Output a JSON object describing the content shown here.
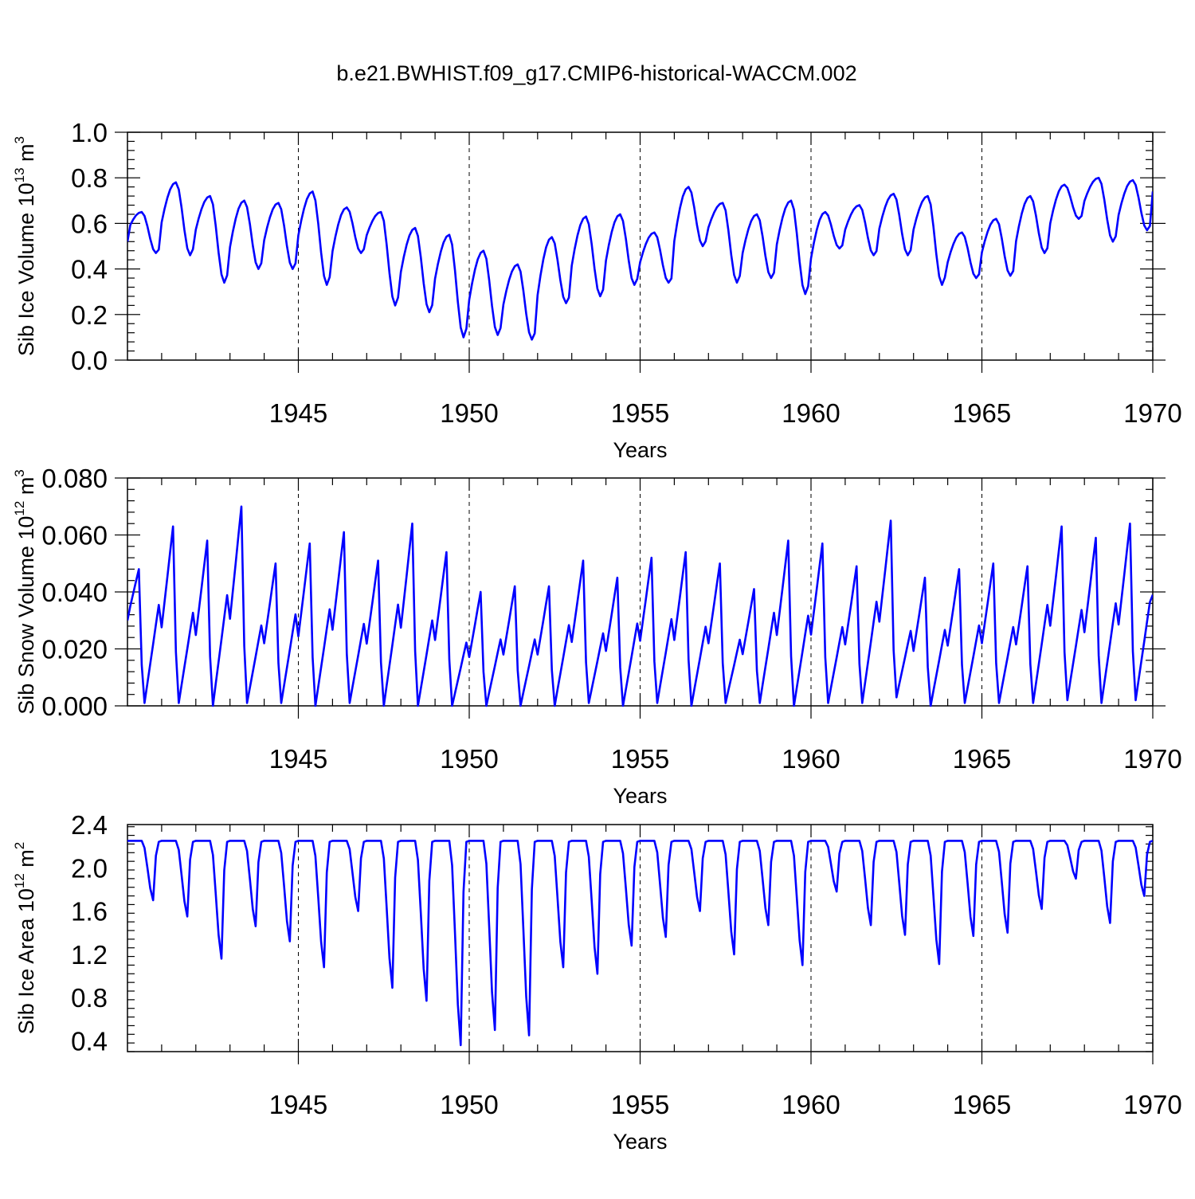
{
  "title": "b.e21.BWHIST.f09_g17.CMIP6-historical-WACCM.002",
  "chart_data": [
    {
      "type": "line",
      "name": "ice-volume",
      "ylabel_main": "Sib Ice Volume 10",
      "ylabel_sup": "13",
      "ylabel_unit": " m",
      "ylabel_unit_sup": "3",
      "xlabel": "Years",
      "xlim": [
        1940,
        1970
      ],
      "ylim": [
        0.0,
        1.0
      ],
      "y_ticks": [
        "0.0",
        "0.2",
        "0.4",
        "0.6",
        "0.8",
        "1.0"
      ],
      "y_tick_values": [
        0.0,
        0.2,
        0.4,
        0.6,
        0.8,
        1.0
      ],
      "x_ticks": [
        "1945",
        "1950",
        "1955",
        "1960",
        "1965",
        "1970"
      ],
      "x_tick_values": [
        1945,
        1950,
        1955,
        1960,
        1965,
        1970
      ],
      "color": "#0000ff",
      "seasonal": {
        "min_month": 10,
        "max_month": 5,
        "yearly_min": [
          0.47,
          0.46,
          0.34,
          0.4,
          0.4,
          0.33,
          0.47,
          0.24,
          0.21,
          0.1,
          0.11,
          0.09,
          0.25,
          0.28,
          0.33,
          0.34,
          0.5,
          0.34,
          0.36,
          0.29,
          0.49,
          0.46,
          0.46,
          0.33,
          0.36,
          0.37,
          0.47,
          0.62,
          0.52,
          0.57
        ],
        "yearly_max": [
          0.65,
          0.78,
          0.72,
          0.7,
          0.69,
          0.74,
          0.67,
          0.65,
          0.58,
          0.55,
          0.48,
          0.42,
          0.54,
          0.63,
          0.64,
          0.56,
          0.76,
          0.69,
          0.64,
          0.7,
          0.65,
          0.68,
          0.73,
          0.72,
          0.56,
          0.62,
          0.72,
          0.77,
          0.8,
          0.79
        ],
        "end_value": 0.74
      }
    },
    {
      "type": "line",
      "name": "snow-volume",
      "ylabel_main": "Sib Snow Volume 10",
      "ylabel_sup": "12",
      "ylabel_unit": " m",
      "ylabel_unit_sup": "3",
      "xlabel": "Years",
      "xlim": [
        1940,
        1970
      ],
      "ylim": [
        0.0,
        0.08
      ],
      "y_ticks": [
        "0.000",
        "0.020",
        "0.040",
        "0.060",
        "0.080"
      ],
      "y_tick_values": [
        0.0,
        0.02,
        0.04,
        0.06,
        0.08
      ],
      "x_ticks": [
        "1945",
        "1950",
        "1955",
        "1960",
        "1965",
        "1970"
      ],
      "x_tick_values": [
        1945,
        1950,
        1955,
        1960,
        1965,
        1970
      ],
      "color": "#0000ff",
      "sawtooth": {
        "start_value": 0.03,
        "peak_month": 4,
        "yearly_peak": [
          0.048,
          0.063,
          0.058,
          0.07,
          0.05,
          0.057,
          0.061,
          0.051,
          0.064,
          0.054,
          0.04,
          0.042,
          0.042,
          0.051,
          0.045,
          0.052,
          0.054,
          0.05,
          0.041,
          0.058,
          0.057,
          0.049,
          0.065,
          0.045,
          0.048,
          0.05,
          0.049,
          0.063,
          0.059,
          0.064
        ],
        "yearly_min": [
          0.001,
          0.001,
          0.0,
          0.001,
          0.001,
          0.0,
          0.001,
          0.0,
          0.0,
          0.0,
          0.0,
          0.0,
          0.0,
          0.001,
          0.0,
          0.001,
          0.0,
          0.001,
          0.001,
          0.0,
          0.001,
          0.001,
          0.003,
          0.0,
          0.001,
          0.001,
          0.001,
          0.002,
          0.001,
          0.002
        ],
        "end_value": 0.039
      }
    },
    {
      "type": "line",
      "name": "ice-area",
      "ylabel_main": "Sib Ice Area 10",
      "ylabel_sup": "12",
      "ylabel_unit": " m",
      "ylabel_unit_sup": "2",
      "xlabel": "Years",
      "xlim": [
        1940,
        1970
      ],
      "ylim": [
        0.3,
        2.4
      ],
      "y_ticks": [
        "0.4",
        "0.8",
        "1.2",
        "1.6",
        "2.0",
        "2.4"
      ],
      "y_tick_values": [
        0.4,
        0.8,
        1.2,
        1.6,
        2.0,
        2.4
      ],
      "x_ticks": [
        "1945",
        "1950",
        "1955",
        "1960",
        "1965",
        "1970"
      ],
      "x_tick_values": [
        1945,
        1950,
        1955,
        1960,
        1965,
        1970
      ],
      "color": "#0000ff",
      "plateau": {
        "plateau_value": 2.25,
        "min_month": 9,
        "yearly_min": [
          1.7,
          1.55,
          1.16,
          1.46,
          1.32,
          1.08,
          1.6,
          0.89,
          0.77,
          0.36,
          0.5,
          0.45,
          1.08,
          1.02,
          1.28,
          1.36,
          1.6,
          1.2,
          1.47,
          1.1,
          1.78,
          1.47,
          1.38,
          1.11,
          1.37,
          1.4,
          1.62,
          1.9,
          1.49,
          1.74
        ],
        "end_value": 2.25
      }
    }
  ]
}
